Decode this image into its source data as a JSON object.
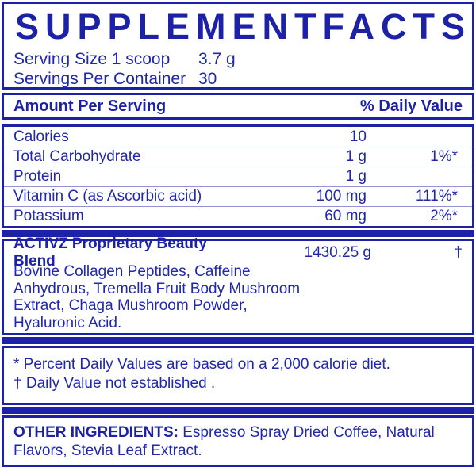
{
  "title_words": [
    "SUPPLEMENT",
    "FACTS"
  ],
  "serving": [
    {
      "label": "Serving Size 1 scoop",
      "value": "3.7 g"
    },
    {
      "label": "Servings Per Container",
      "value": "30"
    }
  ],
  "header": {
    "left": "Amount Per Serving",
    "right": "% Daily Value"
  },
  "nutrients": [
    {
      "name": "Calories",
      "amount": "10",
      "dv": ""
    },
    {
      "name": "Total Carbohydrate",
      "amount": "1 g",
      "dv": "1%*"
    },
    {
      "name": "Protein",
      "amount": "1 g",
      "dv": ""
    },
    {
      "name": "Vitamin C (as Ascorbic acid)",
      "amount": "100 mg",
      "dv": "111%*"
    },
    {
      "name": "Potassium",
      "amount": "60 mg",
      "dv": "2%*"
    }
  ],
  "blend": {
    "name": "ACTIVZ Proprietary Beauty Blend",
    "amount": "1430.25 g",
    "dv": "†",
    "description": "Bovine Collagen Peptides, Caffeine\nAnhydrous, Tremella Fruit Body Mushroom\nExtract, Chaga Mushroom Powder,\nHyaluronic Acid."
  },
  "footnotes": [
    "* Percent Daily Values are based on a 2,000 calorie diet.",
    "† Daily Value not established ."
  ],
  "other_ingredients": {
    "label": "OTHER INGREDIENTS:",
    "text": " Espresso Spray Dried Coffee, Natural Flavors, Stevia Leaf Extract."
  },
  "colors": {
    "primary": "#1d21a5",
    "text": "#2028a9",
    "hairline": "#9095d8",
    "background": "#ffffff"
  }
}
